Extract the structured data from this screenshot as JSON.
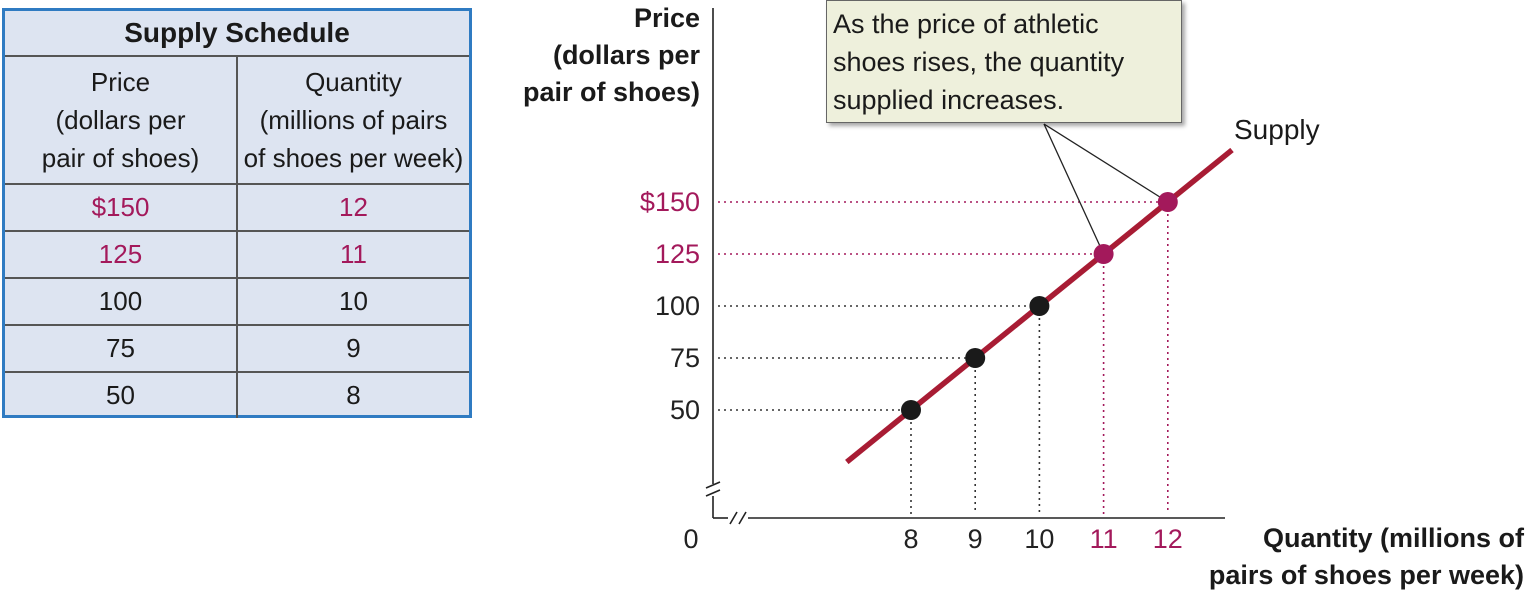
{
  "schedule": {
    "title": "Supply Schedule",
    "price_header": [
      "Price",
      "(dollars per",
      "pair of shoes)"
    ],
    "quantity_header": [
      "Quantity",
      "(millions of pairs",
      "of shoes per week)"
    ],
    "rows": [
      {
        "price": "$150",
        "quantity": "12",
        "highlight": true
      },
      {
        "price": "125",
        "quantity": "11",
        "highlight": true
      },
      {
        "price": "100",
        "quantity": "10",
        "highlight": false
      },
      {
        "price": "75",
        "quantity": "9",
        "highlight": false
      },
      {
        "price": "50",
        "quantity": "8",
        "highlight": false
      }
    ]
  },
  "annotation": [
    "As the price of athletic",
    "shoes rises, the quantity",
    "supplied increases."
  ],
  "colors": {
    "supply_line": "#a81c34",
    "highlight": "#a3195b",
    "point": "#1a1a1a",
    "table_border": "#2f7bc2",
    "table_fill": "#dde4f1",
    "callout_fill": "#eef0dc"
  },
  "chart_data": {
    "type": "line",
    "title": "",
    "ylabel": [
      "Price",
      "(dollars per",
      "pair of shoes)"
    ],
    "xlabel": [
      "Quantity (millions of",
      "pairs of shoes per week)"
    ],
    "origin_label": "0",
    "series": [
      {
        "name": "Supply",
        "x": [
          8,
          9,
          10,
          11,
          12
        ],
        "y": [
          50,
          75,
          100,
          125,
          150
        ]
      }
    ],
    "line_extent": {
      "x": [
        7,
        13
      ],
      "y": [
        25,
        175
      ]
    },
    "x_ticks": [
      {
        "value": 8,
        "label": "8",
        "highlight": false
      },
      {
        "value": 9,
        "label": "9",
        "highlight": false
      },
      {
        "value": 10,
        "label": "10",
        "highlight": false
      },
      {
        "value": 11,
        "label": "11",
        "highlight": true
      },
      {
        "value": 12,
        "label": "12",
        "highlight": true
      }
    ],
    "y_ticks": [
      {
        "value": 50,
        "label": "50",
        "highlight": false
      },
      {
        "value": 75,
        "label": "75",
        "highlight": false
      },
      {
        "value": 100,
        "label": "100",
        "highlight": false
      },
      {
        "value": 125,
        "label": "125",
        "highlight": true
      },
      {
        "value": 150,
        "label": "$150",
        "highlight": true
      }
    ],
    "axis_breaks": true,
    "grid": false
  }
}
